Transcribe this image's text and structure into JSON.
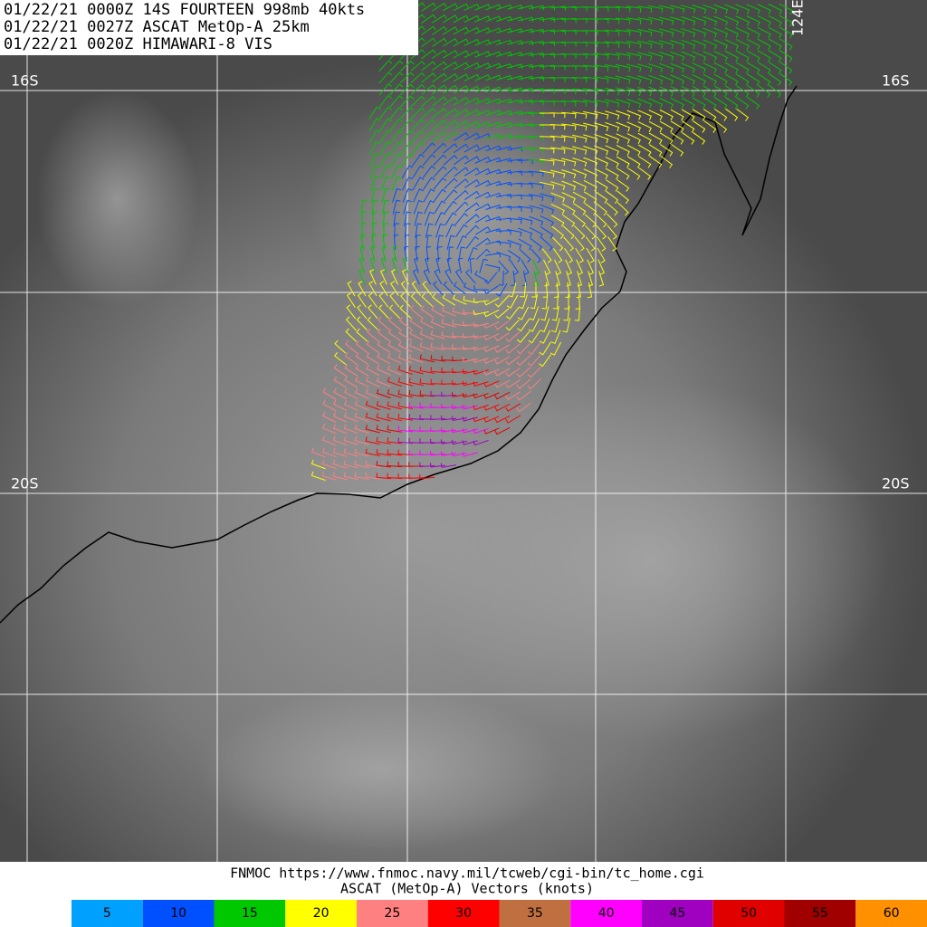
{
  "header": {
    "lines": [
      "01/22/21 0000Z  14S FOURTEEN 998mb 40kts",
      "01/22/21 0027Z  ASCAT MetOp-A 25km",
      "01/22/21 0020Z  HIMAWARI-8 VIS"
    ]
  },
  "grid_labels": {
    "lat_16_left": "16S",
    "lat_16_right": "16S",
    "lat_20_left": "20S",
    "lat_20_right": "20S",
    "lon_124": "124E"
  },
  "footer": {
    "source": "FNMOC https://www.fnmoc.navy.mil/tcweb/cgi-bin/tc_home.cgi",
    "title": "ASCAT (MetOp-A) Vectors (knots)"
  },
  "legend": {
    "items": [
      {
        "value": 5,
        "color": "#00a0ff"
      },
      {
        "value": 10,
        "color": "#0050ff"
      },
      {
        "value": 15,
        "color": "#00c800"
      },
      {
        "value": 20,
        "color": "#ffff00"
      },
      {
        "value": 25,
        "color": "#ff8080"
      },
      {
        "value": 30,
        "color": "#ff0000"
      },
      {
        "value": 35,
        "color": "#c07040"
      },
      {
        "value": 40,
        "color": "#ff00ff"
      },
      {
        "value": 45,
        "color": "#a000c0"
      },
      {
        "value": 50,
        "color": "#e00000"
      },
      {
        "value": 55,
        "color": "#a00000"
      },
      {
        "value": 60,
        "color": "#ff9000"
      }
    ]
  }
}
